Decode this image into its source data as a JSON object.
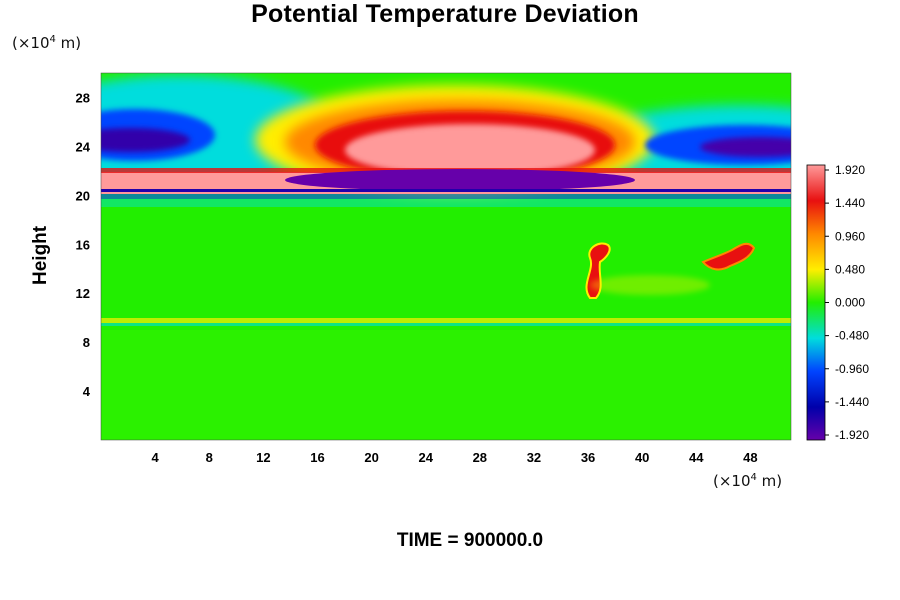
{
  "title": "Potential Temperature Deviation",
  "footer": "TIME = 900000.0",
  "chart_data": {
    "type": "heatmap",
    "title": "Potential Temperature Deviation",
    "ylabel": "Height",
    "xunit": {
      "prefix": "(×10",
      "exp": "4",
      "suffix": " m)"
    },
    "yunit": {
      "prefix": "(×10",
      "exp": "4",
      "suffix": " m)"
    },
    "xlim": [
      0,
      51
    ],
    "ylim": [
      0,
      30
    ],
    "xticks": [
      4,
      8,
      12,
      16,
      20,
      24,
      28,
      32,
      36,
      40,
      44,
      48
    ],
    "yticks": [
      4,
      8,
      12,
      16,
      20,
      24,
      28
    ],
    "colorbar": {
      "range": [
        -1.92,
        1.92
      ],
      "labels": [
        "1.920",
        "1.440",
        "0.960",
        "0.480",
        "0.000",
        "-0.480",
        "-0.960",
        "-1.440",
        "-1.920"
      ],
      "colors": [
        "#ff9a9a",
        "#e81010",
        "#ff8800",
        "#ffee00",
        "#22ee00",
        "#00dddd",
        "#0044ff",
        "#0000aa",
        "#6600aa"
      ]
    },
    "features": [
      {
        "kind": "positive-anomaly",
        "x": [
          17,
          37
        ],
        "y": [
          21,
          26.5
        ],
        "value": 1.92
      },
      {
        "kind": "negative-anomaly",
        "x": [
          0,
          6
        ],
        "y": [
          21.5,
          25.5
        ],
        "value": -1.92
      },
      {
        "kind": "negative-anomaly",
        "x": [
          38,
          51
        ],
        "y": [
          22,
          25
        ],
        "value": -1.9
      },
      {
        "kind": "negative-anomaly",
        "x": [
          17,
          38
        ],
        "y": [
          20.2,
          21.5
        ],
        "value": -1.92
      },
      {
        "kind": "positive-band",
        "x": [
          0,
          51
        ],
        "y": [
          20,
          22
        ],
        "value": 1.92
      },
      {
        "kind": "convective-plume",
        "x": [
          35,
          37.5
        ],
        "y": [
          11.8,
          16.5
        ],
        "value": 1.5
      },
      {
        "kind": "convective-plume",
        "x": [
          43,
          47.5
        ],
        "y": [
          13.5,
          16
        ],
        "value": 1.3
      },
      {
        "kind": "weak-band",
        "x": [
          0,
          51
        ],
        "y": [
          9.5,
          10
        ],
        "value": 0.45
      }
    ]
  }
}
